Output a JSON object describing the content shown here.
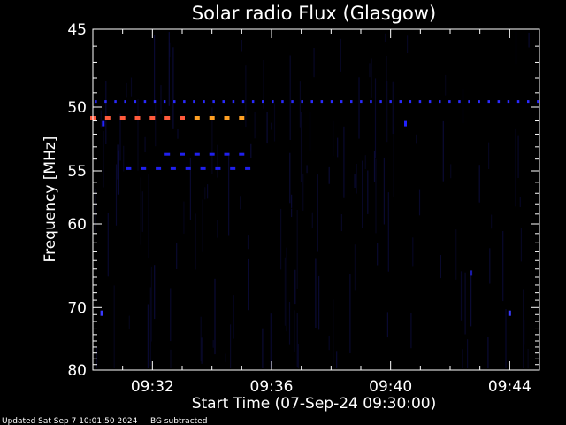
{
  "chart_data": {
    "type": "heatmap",
    "title": "Solar radio Flux (Glasgow)",
    "xlabel": "Start Time (07-Sep-24 09:30:00)",
    "ylabel": "Frequency [MHz]",
    "x_unit": "minutes after 09:30:00",
    "xlim": [
      0,
      15.0
    ],
    "ylim": [
      45,
      80
    ],
    "y_scale": "reciprocal",
    "x_ticks": [
      {
        "value": 2,
        "label": "09:32"
      },
      {
        "value": 6,
        "label": "09:36"
      },
      {
        "value": 10,
        "label": "09:40"
      },
      {
        "value": 14,
        "label": "09:44"
      }
    ],
    "y_ticks": [
      {
        "value": 45,
        "label": "45"
      },
      {
        "value": 50,
        "label": "50"
      },
      {
        "value": 55,
        "label": "55"
      },
      {
        "value": 60,
        "label": "60"
      },
      {
        "value": 70,
        "label": "70"
      },
      {
        "value": 80,
        "label": "80"
      }
    ],
    "features": [
      {
        "name": "persistent-band",
        "freq_mhz": 49.6,
        "t_start": 0.1,
        "t_end": 15.0,
        "color": "#2a2aff",
        "spacing_min": 0.33
      },
      {
        "name": "burst-band",
        "freq_mhz": 50.8,
        "t_start": 0.0,
        "t_end": 3.2,
        "color": "#ff5a3c",
        "spacing_min": 0.5
      },
      {
        "name": "burst-band-late",
        "freq_mhz": 50.8,
        "t_start": 3.5,
        "t_end": 5.2,
        "color": "#ffa024",
        "spacing_min": 0.5
      },
      {
        "name": "harmonic-band",
        "freq_mhz": 53.6,
        "t_start": 2.5,
        "t_end": 5.2,
        "color": "#2020ee",
        "spacing_min": 0.5
      },
      {
        "name": "harmonic-band-2",
        "freq_mhz": 54.8,
        "t_start": 1.2,
        "t_end": 5.2,
        "color": "#2020ee",
        "spacing_min": 0.5
      }
    ],
    "spots": [
      {
        "t": 0.35,
        "freq_mhz": 51.2,
        "color": "#2222ff"
      },
      {
        "t": 10.5,
        "freq_mhz": 51.2,
        "color": "#2222ff"
      },
      {
        "t": 0.3,
        "freq_mhz": 70.8,
        "color": "#3a3aff"
      },
      {
        "t": 14.0,
        "freq_mhz": 70.8,
        "color": "#3a3aff"
      },
      {
        "t": 12.7,
        "freq_mhz": 65.5,
        "color": "#1a1aaa"
      }
    ],
    "colors": {
      "background": "#000000",
      "frame": "#ffffff",
      "noise": "#0c0c40"
    }
  },
  "footer": {
    "updated": "Updated Sat Sep  7 10:01:50 2024",
    "note": "BG subtracted"
  }
}
